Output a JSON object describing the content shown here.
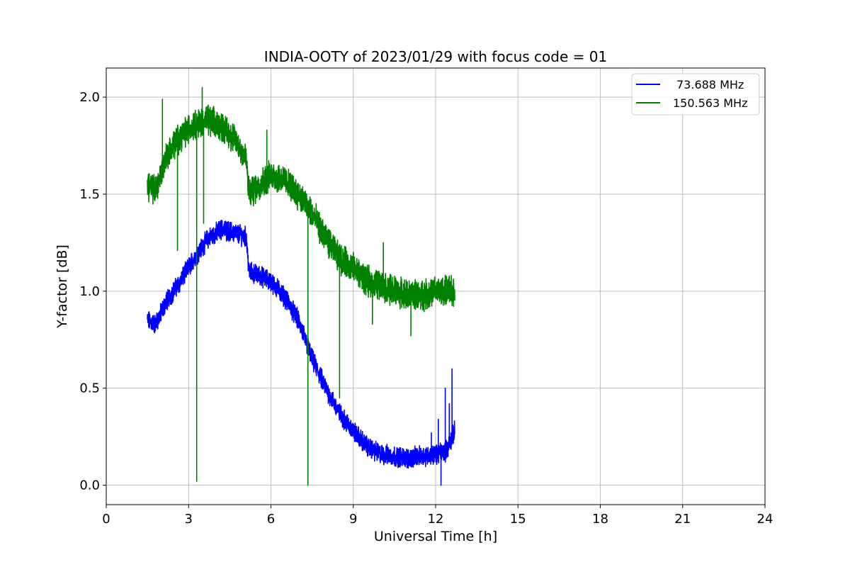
{
  "chart_data": {
    "type": "line",
    "title": "INDIA-OOTY of 2023/01/29 with focus code = 01",
    "xlabel": "Universal Time [h]",
    "ylabel": "Y-factor [dB]",
    "xlim": [
      0,
      24
    ],
    "ylim": [
      -0.1,
      2.15
    ],
    "xticks": [
      0,
      3,
      6,
      9,
      12,
      15,
      18,
      21,
      24
    ],
    "yticks": [
      0.0,
      0.5,
      1.0,
      1.5,
      2.0
    ],
    "ytick_labels": [
      "0.0",
      "0.5",
      "1.0",
      "1.5",
      "2.0"
    ],
    "grid": true,
    "legend_position": "top-right",
    "series": [
      {
        "name": "73.688 MHz",
        "color": "#0000ff",
        "noise": 0.04,
        "x": [
          1.5,
          1.8,
          2.2,
          2.7,
          3.2,
          3.7,
          4.2,
          4.7,
          5.1,
          5.2,
          5.6,
          6.0,
          6.5,
          7.0,
          7.5,
          8.0,
          8.5,
          9.0,
          9.5,
          10.0,
          10.5,
          11.0,
          11.5,
          12.0,
          12.4,
          12.7
        ],
        "y": [
          0.85,
          0.83,
          0.95,
          1.05,
          1.17,
          1.27,
          1.32,
          1.3,
          1.28,
          1.1,
          1.08,
          1.05,
          0.97,
          0.85,
          0.65,
          0.5,
          0.37,
          0.28,
          0.2,
          0.16,
          0.15,
          0.14,
          0.15,
          0.16,
          0.18,
          0.28
        ],
        "spikes": [
          {
            "x": 12.6,
            "y": 0.6
          },
          {
            "x": 12.35,
            "y": 0.5
          },
          {
            "x": 12.5,
            "y": 0.42
          },
          {
            "x": 11.85,
            "y": 0.27
          },
          {
            "x": 12.1,
            "y": 0.34
          },
          {
            "x": 12.2,
            "y": 0.0
          }
        ]
      },
      {
        "name": "150.563 MHz",
        "color": "#008000",
        "noise": 0.06,
        "x": [
          1.5,
          1.8,
          2.2,
          2.7,
          3.2,
          3.7,
          4.2,
          4.7,
          5.1,
          5.2,
          5.6,
          6.0,
          6.5,
          7.0,
          7.5,
          8.0,
          8.5,
          9.0,
          9.5,
          10.0,
          10.5,
          11.0,
          11.5,
          12.0,
          12.4,
          12.7
        ],
        "y": [
          1.55,
          1.52,
          1.7,
          1.8,
          1.86,
          1.88,
          1.85,
          1.78,
          1.68,
          1.5,
          1.55,
          1.6,
          1.57,
          1.5,
          1.4,
          1.27,
          1.17,
          1.12,
          1.05,
          1.03,
          1.0,
          0.98,
          0.98,
          1.0,
          1.0,
          1.0
        ],
        "spikes": [
          {
            "x": 3.3,
            "y": 0.02
          },
          {
            "x": 7.35,
            "y": 0.0
          },
          {
            "x": 8.5,
            "y": 0.45
          },
          {
            "x": 2.6,
            "y": 1.21
          },
          {
            "x": 3.55,
            "y": 1.35
          },
          {
            "x": 3.5,
            "y": 2.05
          },
          {
            "x": 2.05,
            "y": 1.99
          },
          {
            "x": 5.85,
            "y": 1.83
          },
          {
            "x": 10.1,
            "y": 1.25
          },
          {
            "x": 11.1,
            "y": 0.77
          },
          {
            "x": 9.7,
            "y": 0.83
          }
        ]
      }
    ]
  }
}
